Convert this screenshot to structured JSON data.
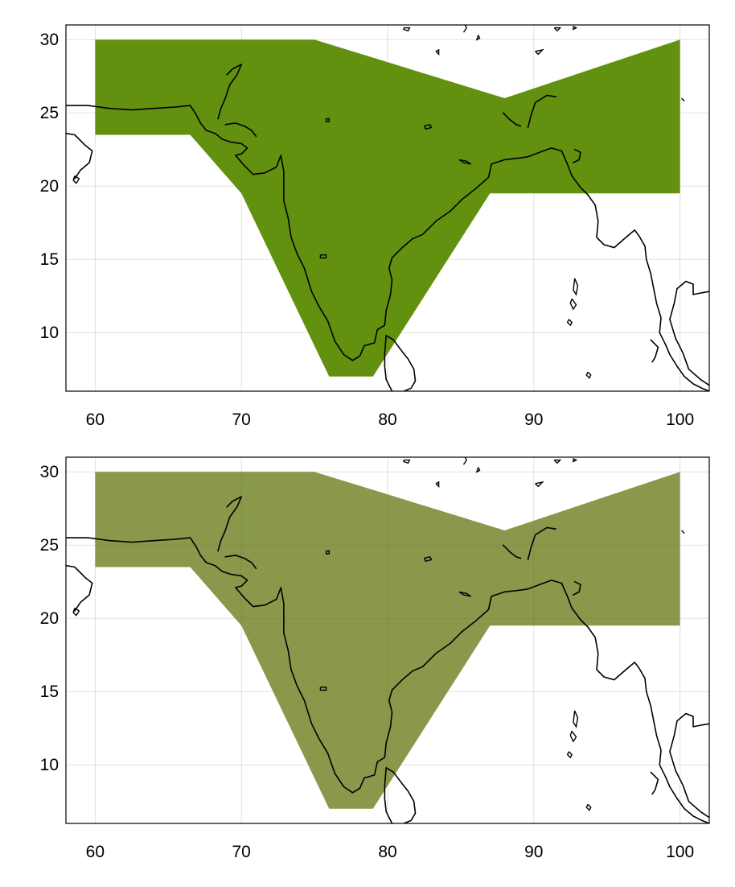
{
  "chart_data": [
    {
      "type": "map",
      "title": "",
      "xlabel": "",
      "ylabel": "",
      "xlim": [
        58,
        102
      ],
      "ylim": [
        6,
        31
      ],
      "xticks": [
        60,
        70,
        80,
        90,
        100
      ],
      "yticks": [
        10,
        15,
        20,
        25,
        30
      ],
      "grid": true,
      "region_color": "#62900f",
      "region_opacity": 1.0,
      "region_polygon": [
        [
          60,
          30
        ],
        [
          75,
          30
        ],
        [
          88,
          26
        ],
        [
          100,
          30
        ],
        [
          100,
          19.5
        ],
        [
          87,
          19.5
        ],
        [
          79,
          7
        ],
        [
          76,
          7
        ],
        [
          70,
          19.5
        ],
        [
          66.5,
          23.5
        ],
        [
          60,
          23.5
        ]
      ]
    },
    {
      "type": "map",
      "title": "",
      "xlabel": "",
      "ylabel": "",
      "xlim": [
        58,
        102
      ],
      "ylim": [
        6,
        31
      ],
      "xticks": [
        60,
        70,
        80,
        90,
        100
      ],
      "yticks": [
        10,
        15,
        20,
        25,
        30
      ],
      "grid": true,
      "region_color": "#62750f",
      "region_opacity": 0.75,
      "region_polygon": [
        [
          60,
          30
        ],
        [
          75,
          30
        ],
        [
          88,
          26
        ],
        [
          100,
          30
        ],
        [
          100,
          19.5
        ],
        [
          87,
          19.5
        ],
        [
          79,
          7
        ],
        [
          76,
          7
        ],
        [
          70,
          19.5
        ],
        [
          66.5,
          23.5
        ],
        [
          60,
          23.5
        ]
      ]
    }
  ],
  "coastline": {
    "line_color": "#000000",
    "main": [
      [
        58,
        25.5
      ],
      [
        59.5,
        25.5
      ],
      [
        61,
        25.3
      ],
      [
        62.5,
        25.2
      ],
      [
        64,
        25.3
      ],
      [
        65.5,
        25.4
      ],
      [
        66.5,
        25.5
      ],
      [
        66.9,
        24.9
      ],
      [
        67.2,
        24.3
      ],
      [
        67.6,
        23.8
      ],
      [
        68.2,
        23.6
      ],
      [
        68.7,
        23.2
      ],
      [
        69.3,
        23.0
      ],
      [
        70.0,
        22.9
      ],
      [
        70.4,
        22.6
      ],
      [
        70.0,
        22.2
      ],
      [
        69.6,
        22.1
      ],
      [
        70.2,
        21.4
      ],
      [
        70.8,
        20.8
      ],
      [
        71.6,
        20.9
      ],
      [
        72.4,
        21.3
      ],
      [
        72.7,
        22.1
      ],
      [
        72.9,
        21.0
      ],
      [
        72.9,
        19.9
      ],
      [
        72.9,
        19.0
      ],
      [
        73.2,
        17.8
      ],
      [
        73.4,
        16.5
      ],
      [
        73.8,
        15.4
      ],
      [
        74.3,
        14.4
      ],
      [
        74.8,
        12.8
      ],
      [
        75.3,
        11.8
      ],
      [
        75.9,
        10.8
      ],
      [
        76.4,
        9.4
      ],
      [
        77.0,
        8.5
      ],
      [
        77.6,
        8.1
      ],
      [
        78.1,
        8.4
      ],
      [
        78.4,
        9.1
      ],
      [
        79.1,
        9.3
      ],
      [
        79.3,
        10.2
      ],
      [
        79.8,
        10.5
      ],
      [
        79.9,
        11.5
      ],
      [
        80.2,
        12.6
      ],
      [
        80.3,
        13.6
      ],
      [
        80.1,
        14.4
      ],
      [
        80.3,
        15.1
      ],
      [
        81.0,
        15.8
      ],
      [
        81.7,
        16.4
      ],
      [
        82.4,
        16.7
      ],
      [
        83.3,
        17.6
      ],
      [
        84.3,
        18.3
      ],
      [
        85.1,
        19.1
      ],
      [
        86.0,
        19.8
      ],
      [
        86.9,
        20.6
      ],
      [
        87.1,
        21.5
      ],
      [
        88.0,
        21.8
      ],
      [
        88.9,
        21.9
      ],
      [
        89.6,
        22.0
      ],
      [
        90.4,
        22.3
      ],
      [
        91.2,
        22.6
      ],
      [
        91.9,
        22.4
      ],
      [
        92.3,
        21.5
      ],
      [
        92.6,
        20.7
      ],
      [
        93.2,
        19.9
      ],
      [
        93.7,
        19.4
      ],
      [
        94.2,
        18.7
      ],
      [
        94.4,
        17.6
      ],
      [
        94.3,
        16.5
      ],
      [
        94.8,
        16.0
      ],
      [
        95.5,
        15.8
      ],
      [
        96.3,
        16.5
      ],
      [
        96.9,
        17.0
      ],
      [
        97.2,
        16.6
      ],
      [
        97.6,
        15.9
      ],
      [
        97.7,
        15.0
      ],
      [
        98.0,
        14.0
      ],
      [
        98.2,
        13.0
      ],
      [
        98.4,
        12.0
      ],
      [
        98.7,
        11.0
      ],
      [
        98.6,
        10.0
      ],
      [
        99.0,
        9.2
      ],
      [
        99.3,
        8.5
      ],
      [
        99.8,
        7.7
      ],
      [
        100.3,
        7.0
      ],
      [
        100.9,
        6.5
      ],
      [
        101.5,
        6.2
      ],
      [
        102,
        6.0
      ]
    ],
    "gulf_thailand": [
      [
        102,
        12.8
      ],
      [
        101.4,
        12.7
      ],
      [
        100.9,
        12.6
      ],
      [
        100.9,
        13.3
      ],
      [
        100.4,
        13.5
      ],
      [
        99.8,
        13.0
      ],
      [
        99.6,
        12.0
      ],
      [
        99.3,
        10.9
      ],
      [
        99.7,
        9.6
      ],
      [
        100.2,
        8.6
      ],
      [
        100.6,
        7.5
      ],
      [
        101.4,
        6.8
      ],
      [
        102,
        6.4
      ]
    ],
    "srilanka": [
      [
        79.9,
        9.8
      ],
      [
        80.4,
        9.5
      ],
      [
        81.0,
        8.7
      ],
      [
        81.4,
        8.2
      ],
      [
        81.8,
        7.5
      ],
      [
        81.9,
        6.7
      ],
      [
        81.6,
        6.2
      ],
      [
        81.0,
        5.95
      ],
      [
        80.3,
        6.0
      ],
      [
        79.9,
        6.8
      ],
      [
        79.8,
        7.7
      ],
      [
        79.8,
        8.6
      ],
      [
        79.9,
        9.8
      ]
    ],
    "arabia": [
      [
        58,
        23.6
      ],
      [
        58.6,
        23.5
      ],
      [
        59.3,
        22.8
      ],
      [
        59.8,
        22.4
      ],
      [
        59.6,
        21.6
      ],
      [
        59.0,
        21.1
      ],
      [
        58.6,
        20.5
      ]
    ],
    "masirah": [
      [
        58.6,
        20.7
      ],
      [
        58.9,
        20.5
      ],
      [
        58.7,
        20.2
      ],
      [
        58.5,
        20.4
      ],
      [
        58.6,
        20.7
      ]
    ],
    "lakes": [
      [
        [
          75.8,
          24.6
        ],
        [
          76.0,
          24.6
        ],
        [
          76.0,
          24.4
        ],
        [
          75.8,
          24.4
        ],
        [
          75.8,
          24.6
        ]
      ],
      [
        [
          82.5,
          24.1
        ],
        [
          82.9,
          24.2
        ],
        [
          83.0,
          24.0
        ],
        [
          82.6,
          23.9
        ],
        [
          82.5,
          24.1
        ]
      ],
      [
        [
          84.9,
          21.8
        ],
        [
          85.4,
          21.7
        ],
        [
          85.7,
          21.5
        ],
        [
          85.2,
          21.6
        ],
        [
          84.9,
          21.8
        ]
      ],
      [
        [
          75.4,
          15.3
        ],
        [
          75.8,
          15.3
        ],
        [
          75.8,
          15.1
        ],
        [
          75.4,
          15.1
        ],
        [
          75.4,
          15.3
        ]
      ]
    ],
    "north": [
      [
        [
          81.1,
          30.8
        ],
        [
          81.5,
          30.8
        ],
        [
          81.4,
          30.6
        ],
        [
          81.1,
          30.7
        ],
        [
          81.1,
          30.8
        ]
      ],
      [
        [
          85.3,
          31
        ],
        [
          85.4,
          30.8
        ],
        [
          85.2,
          30.5
        ]
      ],
      [
        [
          86.2,
          30.3
        ],
        [
          86.3,
          30.1
        ],
        [
          86.1,
          30.0
        ],
        [
          86.2,
          30.3
        ]
      ],
      [
        [
          83.3,
          29.2
        ],
        [
          83.5,
          29.3
        ],
        [
          83.5,
          29.0
        ],
        [
          83.3,
          29.2
        ]
      ],
      [
        [
          90.1,
          29.2
        ],
        [
          90.6,
          29.3
        ],
        [
          90.3,
          29.0
        ],
        [
          90.1,
          29.2
        ]
      ],
      [
        [
          91.4,
          30.8
        ],
        [
          91.8,
          30.8
        ],
        [
          91.6,
          30.6
        ],
        [
          91.4,
          30.8
        ]
      ],
      [
        [
          92.7,
          30.9
        ],
        [
          92.9,
          30.8
        ],
        [
          92.7,
          30.7
        ],
        [
          92.7,
          30.9
        ]
      ],
      [
        [
          100.1,
          26.0
        ],
        [
          100.3,
          25.8
        ]
      ]
    ],
    "brahmaputra": [
      [
        87.9,
        25.0
      ],
      [
        88.4,
        24.5
      ],
      [
        88.8,
        24.2
      ],
      [
        89.1,
        24.1
      ]
    ],
    "brahmaputra_b": [
      [
        89.6,
        24.0
      ],
      [
        89.8,
        24.8
      ],
      [
        90.1,
        25.7
      ],
      [
        90.9,
        26.2
      ],
      [
        91.5,
        26.1
      ]
    ],
    "indus_delta": [
      [
        69.0,
        27.6
      ],
      [
        69.4,
        28.0
      ],
      [
        70.0,
        28.3
      ],
      [
        69.7,
        27.6
      ],
      [
        69.2,
        26.9
      ],
      [
        68.9,
        26.0
      ],
      [
        68.6,
        25.3
      ],
      [
        68.4,
        24.6
      ]
    ],
    "kutch": [
      [
        68.9,
        24.2
      ],
      [
        69.6,
        24.3
      ],
      [
        70.2,
        24.1
      ],
      [
        70.7,
        23.8
      ],
      [
        71.0,
        23.4
      ]
    ],
    "andaman": [
      [
        [
          92.8,
          13.7
        ],
        [
          93.0,
          13.2
        ],
        [
          92.9,
          12.6
        ],
        [
          92.7,
          12.9
        ],
        [
          92.8,
          13.7
        ]
      ],
      [
        [
          92.6,
          12.3
        ],
        [
          92.9,
          11.9
        ],
        [
          92.7,
          11.6
        ],
        [
          92.5,
          12.0
        ],
        [
          92.6,
          12.3
        ]
      ],
      [
        [
          92.4,
          10.9
        ],
        [
          92.6,
          10.7
        ],
        [
          92.5,
          10.5
        ],
        [
          92.3,
          10.7
        ],
        [
          92.4,
          10.9
        ]
      ],
      [
        [
          93.7,
          7.3
        ],
        [
          93.9,
          7.1
        ],
        [
          93.8,
          6.9
        ],
        [
          93.6,
          7.1
        ],
        [
          93.7,
          7.3
        ]
      ]
    ],
    "burma_east": [
      [
        98.0,
        9.5
      ],
      [
        98.5,
        9.0
      ],
      [
        98.3,
        8.3
      ],
      [
        98.1,
        8.0
      ]
    ],
    "myanmar_ridge": [
      [
        92.8,
        22.5
      ],
      [
        93.2,
        22.3
      ],
      [
        93.1,
        21.8
      ],
      [
        92.7,
        21.6
      ]
    ]
  }
}
